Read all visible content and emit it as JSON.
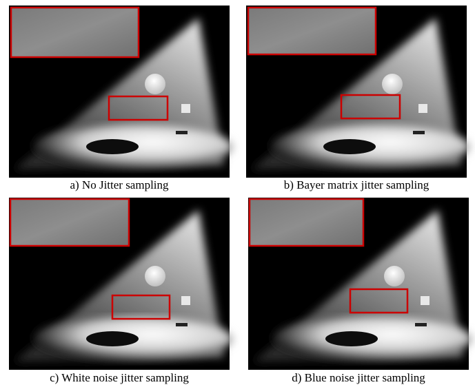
{
  "figures": [
    {
      "caption": "a) No Jitter sampling"
    },
    {
      "caption": "b) Bayer matrix jitter sampling"
    },
    {
      "caption": "c) White noise jitter sampling"
    },
    {
      "caption": "d) Blue noise jitter sampling"
    }
  ]
}
